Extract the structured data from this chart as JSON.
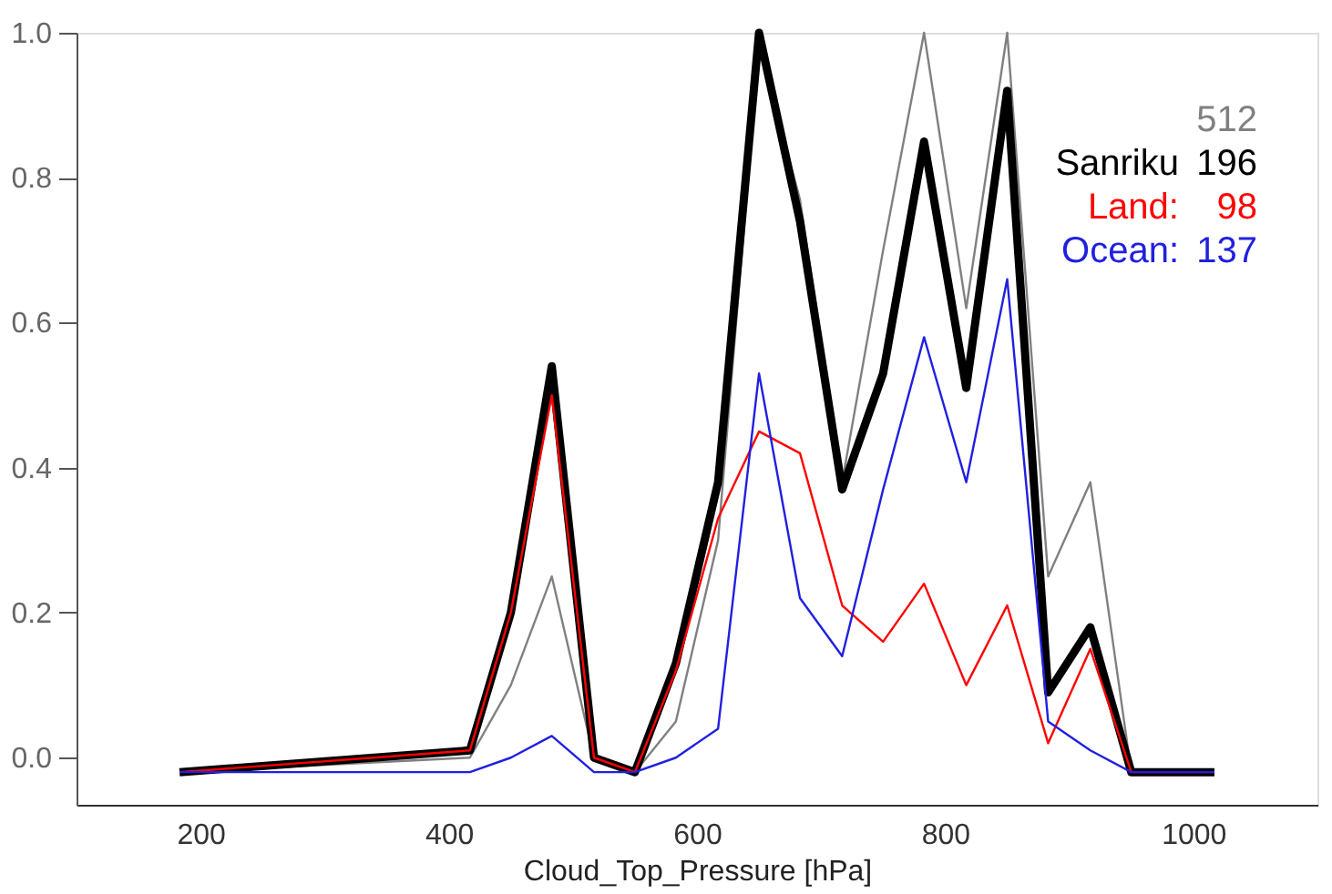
{
  "chart_data": {
    "type": "line",
    "xlabel": "Cloud_Top_Pressure [hPa]",
    "x": [
      183,
      417,
      450,
      483,
      517,
      550,
      583,
      617,
      650,
      683,
      717,
      750,
      783,
      817,
      850,
      883,
      917,
      950,
      1017
    ],
    "series": [
      {
        "color": "#808080",
        "values": [
          -0.02,
          0.0,
          0.1,
          0.25,
          0.0,
          -0.02,
          0.05,
          0.3,
          0.98,
          0.77,
          0.38,
          0.7,
          1.0,
          0.62,
          1.0,
          0.25,
          0.38,
          -0.02,
          -0.02
        ]
      },
      {
        "name": "Sanriku",
        "color": "#000000",
        "values": [
          -0.02,
          0.01,
          0.2,
          0.54,
          0.0,
          -0.02,
          0.13,
          0.38,
          1.0,
          0.74,
          0.37,
          0.53,
          0.85,
          0.51,
          0.92,
          0.09,
          0.18,
          -0.02,
          -0.02
        ]
      },
      {
        "name": "Land:",
        "color": "#ff0000",
        "values": [
          -0.02,
          0.01,
          0.2,
          0.5,
          0.0,
          -0.02,
          0.12,
          0.33,
          0.45,
          0.42,
          0.21,
          0.16,
          0.24,
          0.1,
          0.21,
          0.02,
          0.15,
          -0.02,
          -0.02
        ]
      },
      {
        "name": "Ocean:",
        "color": "#2020e0",
        "values": [
          -0.02,
          -0.02,
          0.0,
          0.03,
          -0.02,
          -0.02,
          0.0,
          0.04,
          0.53,
          0.22,
          0.14,
          0.37,
          0.58,
          0.38,
          0.66,
          0.05,
          0.01,
          -0.02,
          -0.02
        ]
      }
    ],
    "annotations": [
      "512",
      "196",
      "98",
      "137"
    ],
    "legend": "top right",
    "xlim": [
      100,
      1100
    ],
    "xticks": [
      200,
      400,
      600,
      800,
      1000
    ],
    "ylim": [
      -0.065,
      1.0
    ],
    "yticks": [
      {
        "value": 0,
        "label": "0.0"
      },
      {
        "value": 0.2,
        "label": "0.2"
      },
      {
        "value": 0.4,
        "label": "0.4"
      },
      {
        "value": 0.6,
        "label": "0.6"
      },
      {
        "value": 0.8,
        "label": "0.8"
      },
      {
        "value": 1.0,
        "label": "1.0"
      }
    ],
    "grid": false,
    "marker": "none",
    "line_style": "solid"
  }
}
